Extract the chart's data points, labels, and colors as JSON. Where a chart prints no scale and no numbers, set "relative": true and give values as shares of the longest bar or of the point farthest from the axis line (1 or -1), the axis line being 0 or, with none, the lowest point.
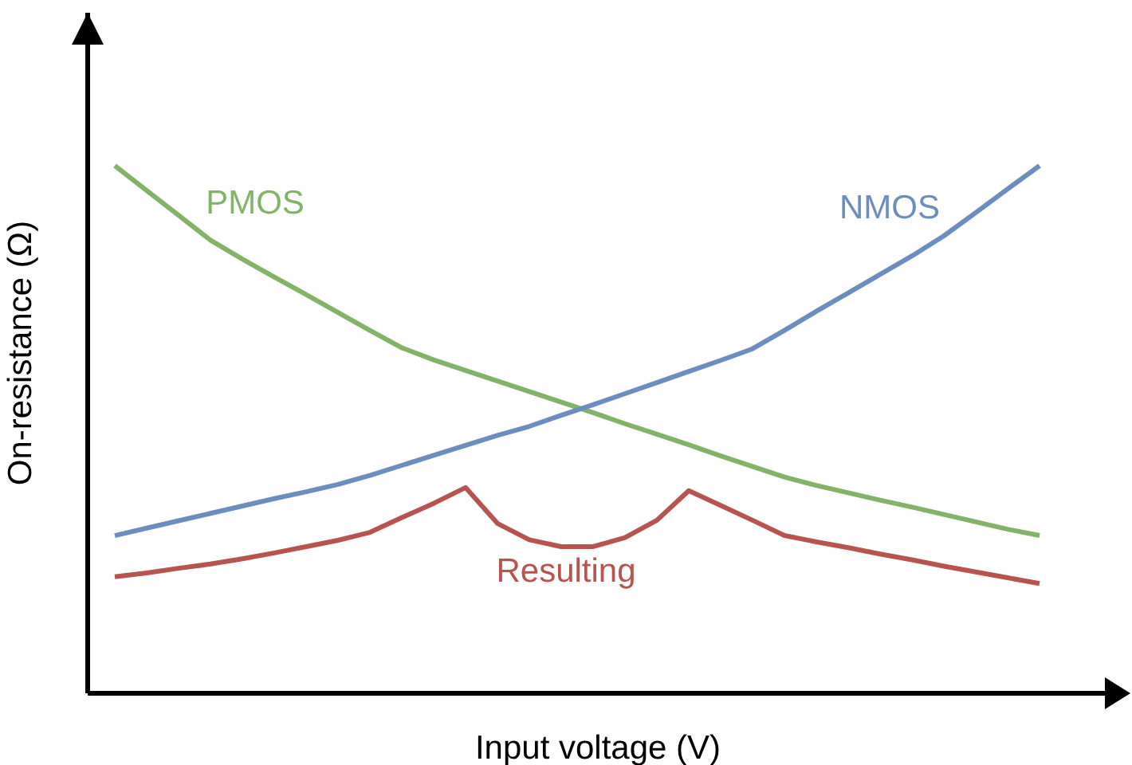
{
  "chart_data": {
    "type": "line",
    "relative": true,
    "xlabel": "Input voltage (V)",
    "ylabel": "On-resistance (Ω)",
    "marker": "none",
    "categories": [
      null,
      null,
      null,
      null,
      null,
      null,
      null,
      null,
      null,
      null,
      null,
      null,
      null,
      null,
      null,
      null,
      null,
      null,
      null,
      null,
      null,
      null,
      null,
      null,
      null,
      null,
      null,
      null,
      null,
      null
    ],
    "series": [
      {
        "name": "PMOS",
        "color": "#82b366",
        "values": [
          1.0,
          0.953,
          0.906,
          0.859,
          0.823,
          0.789,
          0.756,
          0.722,
          0.688,
          0.655,
          0.632,
          0.612,
          0.592,
          0.572,
          0.552,
          0.532,
          0.511,
          0.491,
          0.471,
          0.45,
          0.43,
          0.41,
          0.394,
          0.38,
          0.366,
          0.353,
          0.339,
          0.325,
          0.311,
          0.299
        ]
      },
      {
        "name": "NMOS",
        "color": "#6c8ebf",
        "values": [
          0.299,
          0.313,
          0.327,
          0.341,
          0.355,
          0.369,
          0.382,
          0.396,
          0.413,
          0.432,
          0.451,
          0.47,
          0.489,
          0.506,
          0.527,
          0.547,
          0.568,
          0.589,
          0.61,
          0.631,
          0.653,
          0.688,
          0.724,
          0.759,
          0.794,
          0.829,
          0.867,
          0.911,
          0.956,
          1.0
        ]
      },
      {
        "name": "Resulting",
        "color": "#b85450",
        "values": [
          0.221,
          0.228,
          0.237,
          0.245,
          0.255,
          0.266,
          0.278,
          0.29,
          0.305,
          0.333,
          0.36,
          0.39,
          0.322,
          0.291,
          0.278,
          0.278,
          0.295,
          0.328,
          0.384,
          0.356,
          0.328,
          0.299,
          0.287,
          0.276,
          0.264,
          0.253,
          0.241,
          0.23,
          0.219,
          0.208
        ]
      }
    ]
  }
}
